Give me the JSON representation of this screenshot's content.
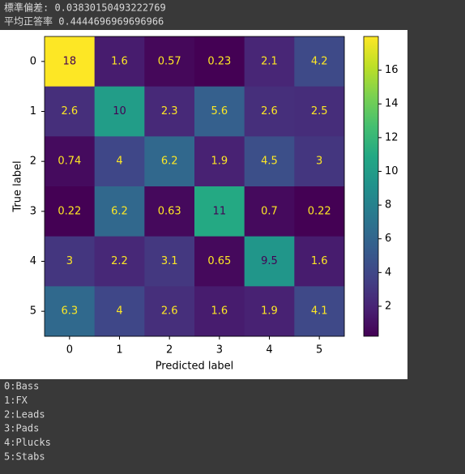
{
  "header": [
    "標準偏差:  0.03830150493222769",
    "平均正答率 0.4444696969696966"
  ],
  "chart_data": {
    "type": "heatmap",
    "x_label": "Predicted label",
    "y_label": "True label",
    "x_categories": [
      "0",
      "1",
      "2",
      "3",
      "4",
      "5"
    ],
    "y_categories": [
      "0",
      "1",
      "2",
      "3",
      "4",
      "5"
    ],
    "values": [
      [
        18,
        1.6,
        0.57,
        0.23,
        2.1,
        4.2
      ],
      [
        2.6,
        10,
        2.3,
        5.6,
        2.6,
        2.5
      ],
      [
        0.74,
        4,
        6.2,
        1.9,
        4.5,
        3
      ],
      [
        0.22,
        6.2,
        0.63,
        11,
        0.7,
        0.22
      ],
      [
        3,
        2.2,
        3.1,
        0.65,
        9.5,
        1.6
      ],
      [
        6.3,
        4,
        2.6,
        1.6,
        1.9,
        4.1
      ]
    ],
    "colormap": "viridis",
    "clim": [
      0.22,
      18
    ],
    "cticks": [
      2,
      4,
      6,
      8,
      10,
      12,
      14,
      16
    ]
  },
  "footer": [
    "0:Bass",
    "1:FX",
    "2:Leads",
    "3:Pads",
    "4:Plucks",
    "5:Stabs"
  ]
}
